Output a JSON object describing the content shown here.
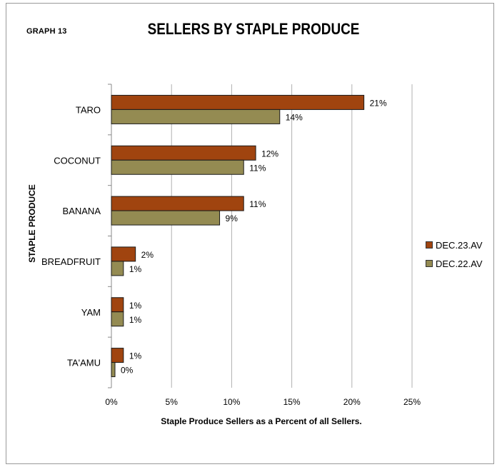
{
  "header": {
    "graph_label": "GRAPH 13"
  },
  "chart_data": {
    "type": "bar",
    "orientation": "horizontal",
    "title": "SELLERS BY STAPLE PRODUCE",
    "xlabel": "Staple Produce Sellers as a Percent of all Sellers.",
    "ylabel": "STAPLE PRODUCE",
    "categories": [
      "TARO",
      "COCONUT",
      "BANANA",
      "BREADFRUIT",
      "YAM",
      "TA'AMU"
    ],
    "series": [
      {
        "name": "DEC.23.AV",
        "color": "#a0440f",
        "values": [
          21,
          12,
          11,
          2,
          1,
          1
        ],
        "labels": [
          "21%",
          "12%",
          "11%",
          "2%",
          "1%",
          "1%"
        ]
      },
      {
        "name": "DEC.22.AV",
        "color": "#948b52",
        "values": [
          14,
          11,
          9,
          1,
          1,
          0
        ],
        "labels": [
          "14%",
          "11%",
          "9%",
          "1%",
          "1%",
          "0%"
        ]
      }
    ],
    "xlim": [
      0,
      25
    ],
    "xticks": [
      "0%",
      "5%",
      "10%",
      "15%",
      "20%",
      "25%"
    ],
    "grid": "vertical",
    "legend_position": "right"
  }
}
